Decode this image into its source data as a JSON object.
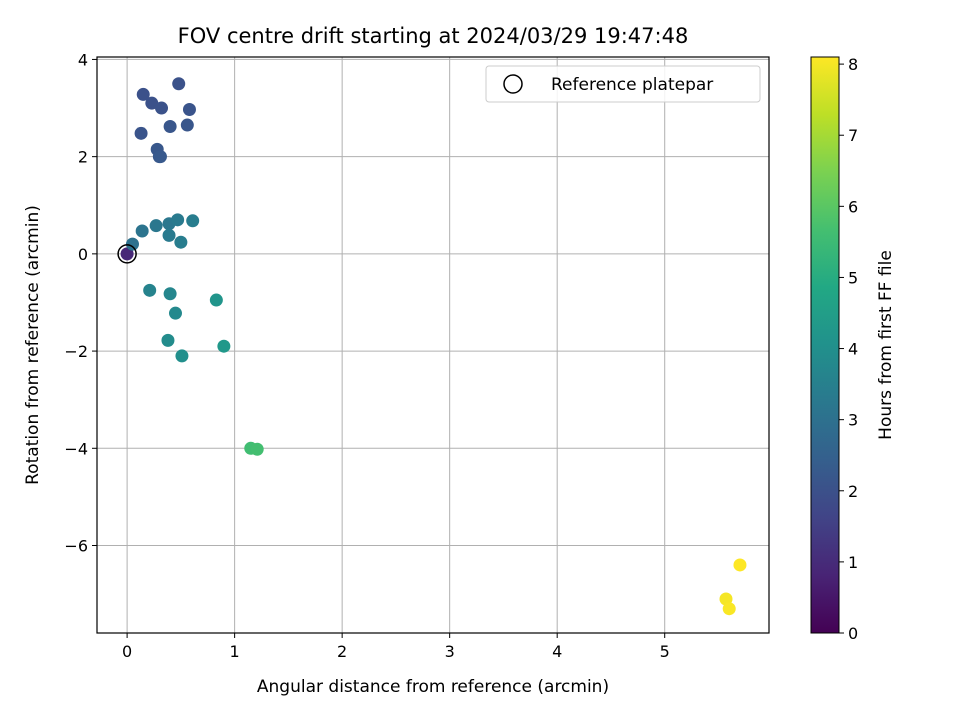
{
  "chart_data": {
    "type": "scatter",
    "title": "FOV centre drift starting at 2024/03/29 19:47:48",
    "xlabel": "Angular distance from reference (arcmin)",
    "ylabel": "Rotation from reference (arcmin)",
    "xlim": [
      -0.28,
      5.97
    ],
    "ylim": [
      -7.8,
      4.05
    ],
    "xticks": [
      0,
      1,
      2,
      3,
      4,
      5
    ],
    "yticks": [
      -6,
      -4,
      -2,
      0,
      2,
      4
    ],
    "grid": true,
    "legend": {
      "placement": "top-right",
      "entries": [
        "Reference platepar"
      ]
    },
    "reference_point": {
      "x": 0,
      "y": 0,
      "label": "Reference platepar"
    },
    "colorbar": {
      "label": "Hours from first FF file",
      "range": [
        0,
        8.1
      ],
      "ticks": [
        0,
        1,
        2,
        3,
        4,
        5,
        6,
        7,
        8
      ],
      "colormap": "viridis"
    },
    "points": [
      {
        "x": 0.0,
        "y": 0.0,
        "hours": 0.9
      },
      {
        "x": 0.15,
        "y": 3.28,
        "hours": 2.0
      },
      {
        "x": 0.23,
        "y": 3.1,
        "hours": 2.0
      },
      {
        "x": 0.32,
        "y": 3.0,
        "hours": 2.05
      },
      {
        "x": 0.48,
        "y": 3.5,
        "hours": 2.05
      },
      {
        "x": 0.58,
        "y": 2.97,
        "hours": 2.1
      },
      {
        "x": 0.13,
        "y": 2.48,
        "hours": 2.1
      },
      {
        "x": 0.4,
        "y": 2.62,
        "hours": 2.15
      },
      {
        "x": 0.56,
        "y": 2.65,
        "hours": 2.15
      },
      {
        "x": 0.28,
        "y": 2.15,
        "hours": 2.2
      },
      {
        "x": 0.3,
        "y": 2.0,
        "hours": 2.2
      },
      {
        "x": 0.31,
        "y": 2.0,
        "hours": 2.25
      },
      {
        "x": 0.05,
        "y": 0.2,
        "hours": 3.0
      },
      {
        "x": 0.14,
        "y": 0.47,
        "hours": 3.1
      },
      {
        "x": 0.27,
        "y": 0.58,
        "hours": 3.2
      },
      {
        "x": 0.39,
        "y": 0.62,
        "hours": 3.2
      },
      {
        "x": 0.47,
        "y": 0.7,
        "hours": 3.3
      },
      {
        "x": 0.61,
        "y": 0.68,
        "hours": 3.4
      },
      {
        "x": 0.39,
        "y": 0.38,
        "hours": 3.3
      },
      {
        "x": 0.5,
        "y": 0.24,
        "hours": 3.4
      },
      {
        "x": 0.21,
        "y": -0.75,
        "hours": 3.6
      },
      {
        "x": 0.4,
        "y": -0.82,
        "hours": 3.7
      },
      {
        "x": 0.45,
        "y": -1.22,
        "hours": 3.8
      },
      {
        "x": 0.83,
        "y": -0.95,
        "hours": 4.2
      },
      {
        "x": 0.38,
        "y": -1.78,
        "hours": 3.9
      },
      {
        "x": 0.51,
        "y": -2.1,
        "hours": 4.0
      },
      {
        "x": 0.9,
        "y": -1.9,
        "hours": 4.3
      },
      {
        "x": 1.15,
        "y": -4.0,
        "hours": 5.6
      },
      {
        "x": 1.21,
        "y": -4.02,
        "hours": 5.65
      },
      {
        "x": 5.57,
        "y": -7.1,
        "hours": 8.0
      },
      {
        "x": 5.6,
        "y": -7.3,
        "hours": 8.05
      },
      {
        "x": 5.7,
        "y": -6.4,
        "hours": 8.1
      }
    ]
  }
}
